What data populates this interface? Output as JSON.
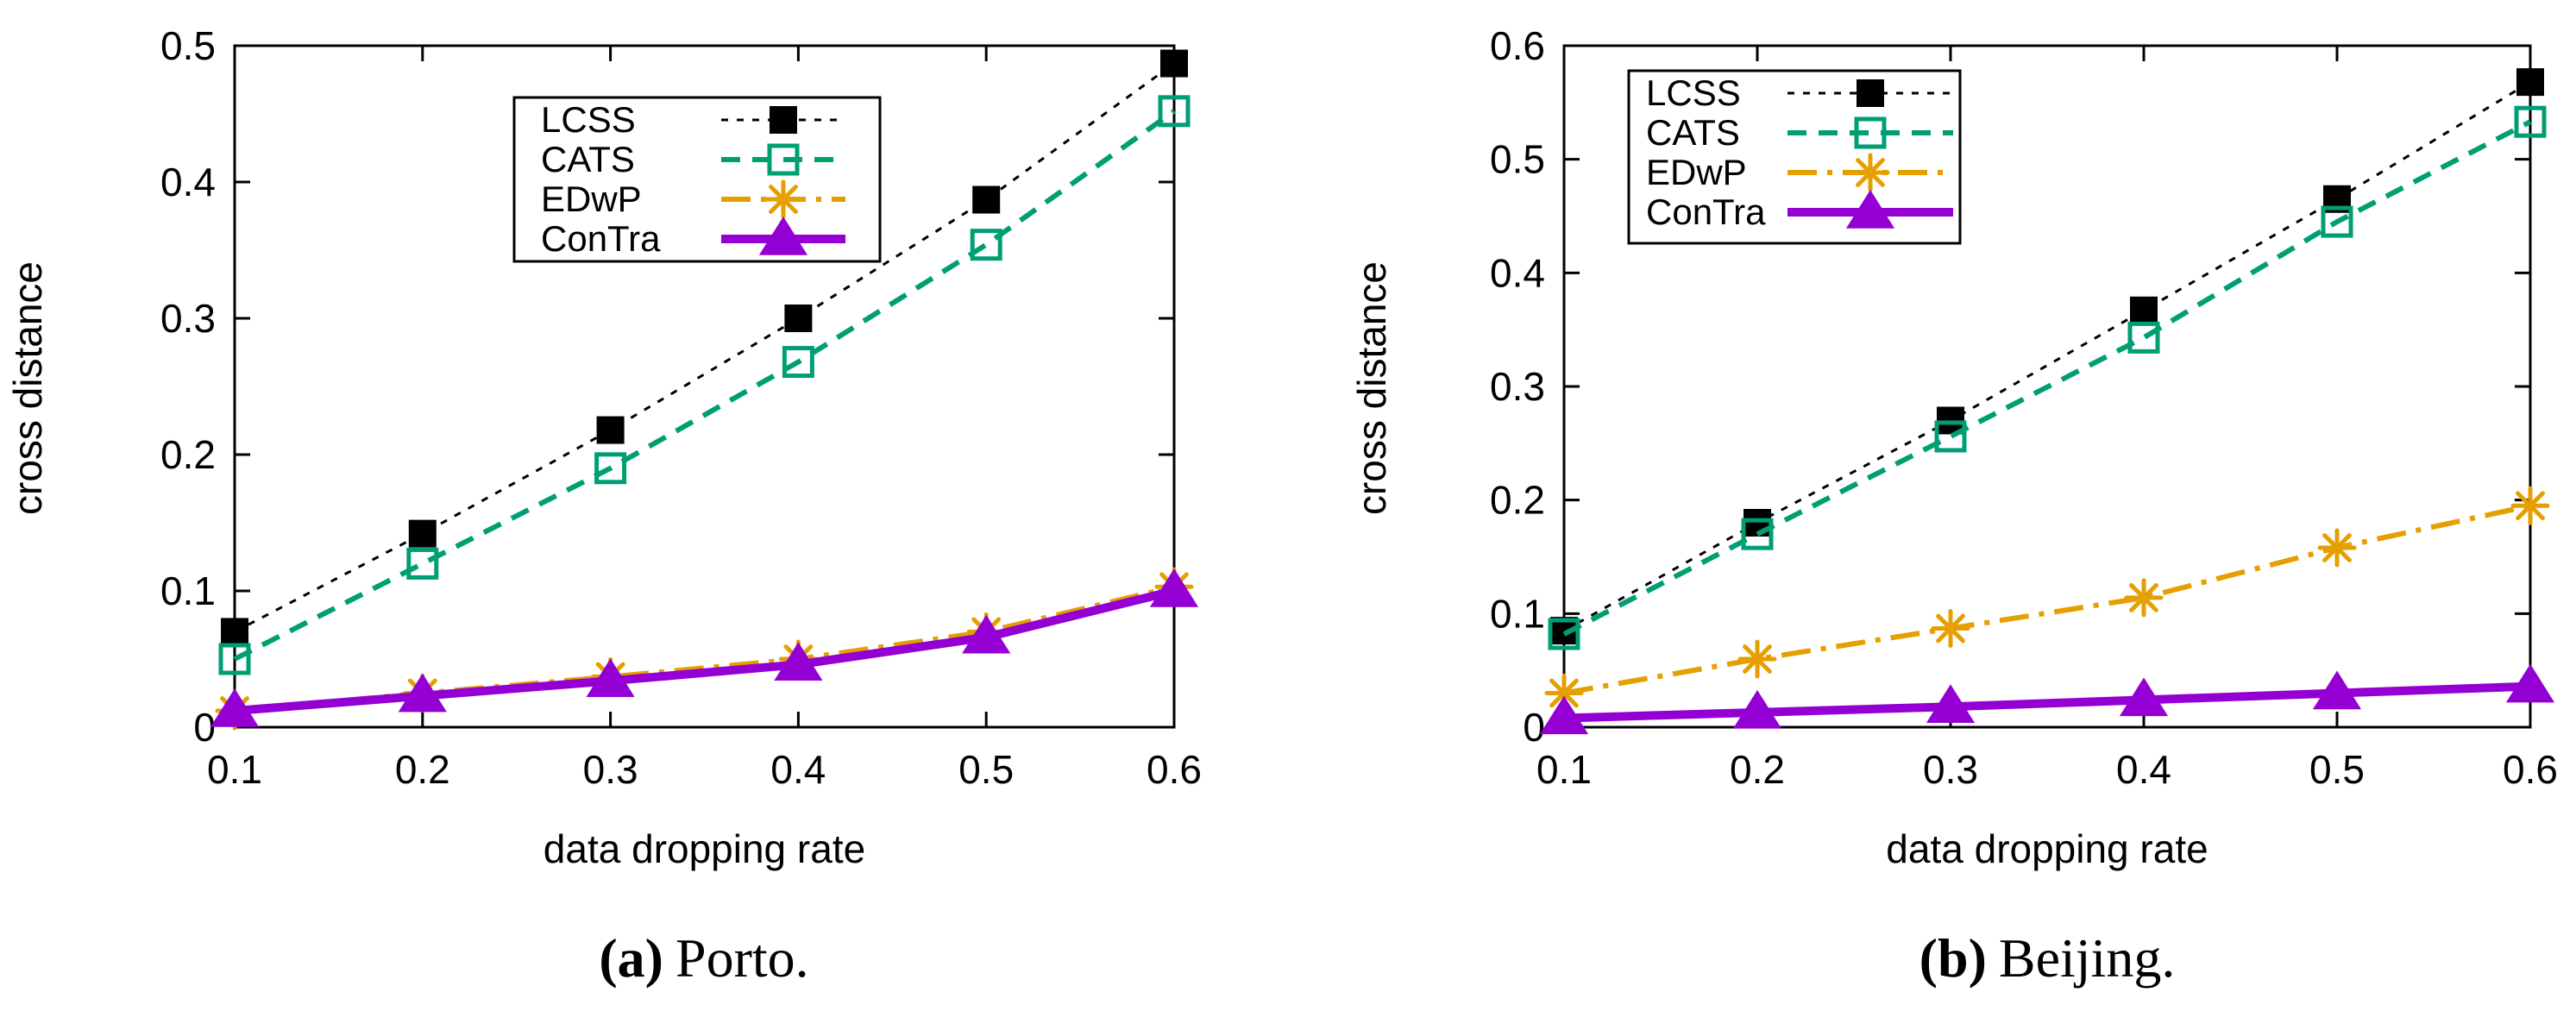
{
  "chart_data": [
    {
      "type": "line",
      "caption": {
        "letter": "(a)",
        "text": "Porto."
      },
      "xlabel": "data dropping rate",
      "ylabel": "cross distance",
      "xlim": [
        0.1,
        0.6
      ],
      "ylim": [
        0,
        0.5
      ],
      "xticks": [
        "0.1",
        "0.2",
        "0.3",
        "0.4",
        "0.5",
        "0.6"
      ],
      "yticks": [
        "0",
        "0.1",
        "0.2",
        "0.3",
        "0.4",
        "0.5"
      ],
      "legend_position": "top-center",
      "x": [
        0.1,
        0.2,
        0.3,
        0.4,
        0.5,
        0.6
      ],
      "series": [
        {
          "name": "LCSS",
          "color": "#000000",
          "values": [
            0.07,
            0.142,
            0.218,
            0.3,
            0.387,
            0.487
          ]
        },
        {
          "name": "CATS",
          "color": "#009e73",
          "values": [
            0.05,
            0.12,
            0.19,
            0.268,
            0.354,
            0.452
          ]
        },
        {
          "name": "EDwP",
          "color": "#e69f00",
          "values": [
            0.012,
            0.025,
            0.037,
            0.05,
            0.07,
            0.103
          ]
        },
        {
          "name": "ConTra",
          "color": "#9400d3",
          "values": [
            0.012,
            0.023,
            0.034,
            0.046,
            0.066,
            0.1
          ]
        }
      ]
    },
    {
      "type": "line",
      "caption": {
        "letter": "(b)",
        "text": "Beijing."
      },
      "xlabel": "data dropping rate",
      "ylabel": "cross distance",
      "xlim": [
        0.1,
        0.6
      ],
      "ylim": [
        0,
        0.6
      ],
      "xticks": [
        "0.1",
        "0.2",
        "0.3",
        "0.4",
        "0.5",
        "0.6"
      ],
      "yticks": [
        "0",
        "0.1",
        "0.2",
        "0.3",
        "0.4",
        "0.5",
        "0.6"
      ],
      "legend_position": "top-left",
      "x": [
        0.1,
        0.2,
        0.3,
        0.4,
        0.5,
        0.6
      ],
      "series": [
        {
          "name": "LCSS",
          "color": "#000000",
          "values": [
            0.085,
            0.18,
            0.27,
            0.367,
            0.465,
            0.568
          ]
        },
        {
          "name": "CATS",
          "color": "#009e73",
          "values": [
            0.082,
            0.17,
            0.256,
            0.343,
            0.445,
            0.533
          ]
        },
        {
          "name": "EDwP",
          "color": "#e69f00",
          "values": [
            0.03,
            0.06,
            0.087,
            0.114,
            0.158,
            0.195
          ]
        },
        {
          "name": "ConTra",
          "color": "#9400d3",
          "values": [
            0.008,
            0.013,
            0.018,
            0.024,
            0.03,
            0.036
          ]
        }
      ]
    }
  ]
}
